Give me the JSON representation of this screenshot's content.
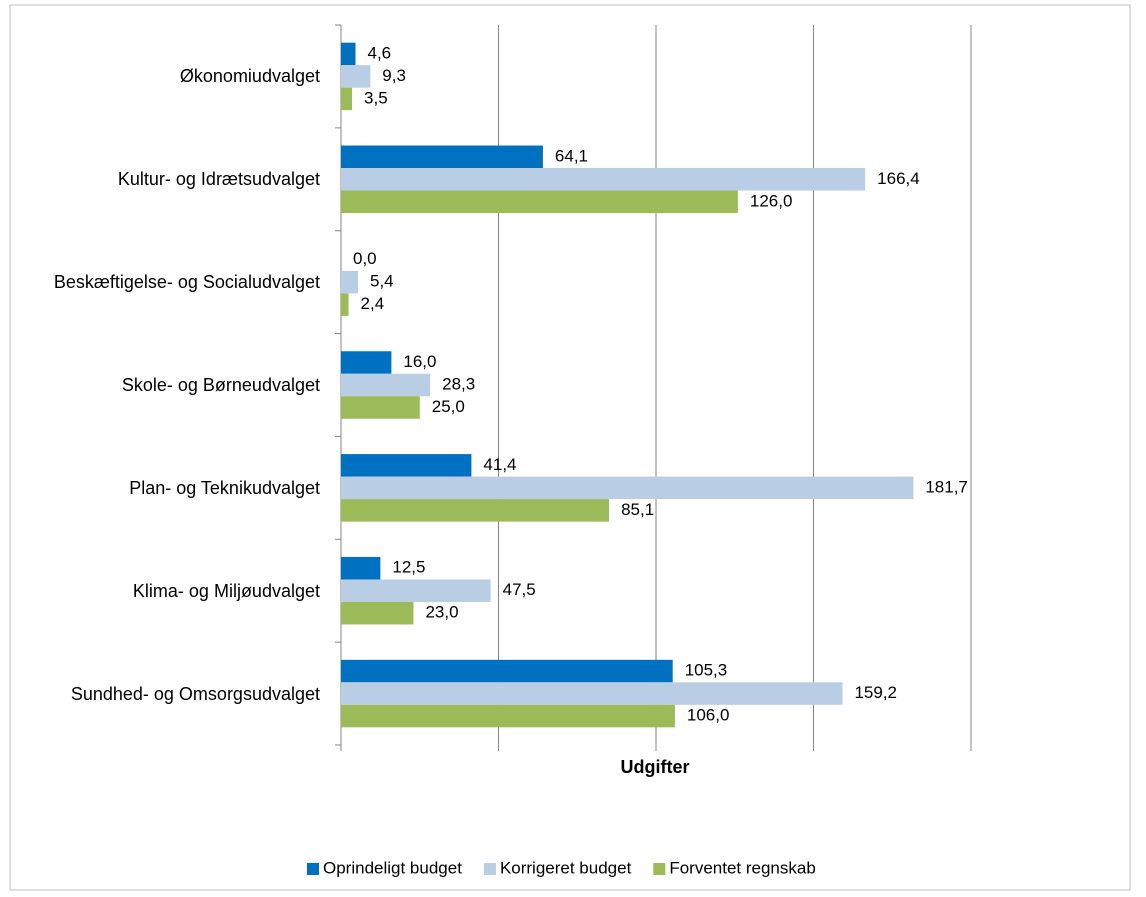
{
  "chart_data": {
    "type": "barh",
    "x_label": "Udgifter",
    "categories": [
      "Økonomiudvalget",
      "Kultur- og Idrætsudvalget",
      "Beskæftigelse- og Socialudvalget",
      "Skole- og Børneudvalget",
      "Plan- og Teknikudvalget",
      "Klima- og Miljøudvalget",
      "Sundhed- og Omsorgsudvalget"
    ],
    "series": [
      {
        "name": "Oprindeligt budget",
        "color": "#0070c0",
        "values": [
          4.6,
          64.1,
          0.0,
          16.0,
          41.4,
          12.5,
          105.3
        ],
        "value_labels": [
          "4,6",
          "64,1",
          "0,0",
          "16,0",
          "41,4",
          "12,5",
          "105,3"
        ]
      },
      {
        "name": "Korrigeret budget",
        "color": "#b9cde5",
        "values": [
          9.3,
          166.4,
          5.4,
          28.3,
          181.7,
          47.5,
          159.2
        ],
        "value_labels": [
          "9,3",
          "166,4",
          "5,4",
          "28,3",
          "181,7",
          "47,5",
          "159,2"
        ]
      },
      {
        "name": "Forventet regnskab",
        "color": "#9bbb59",
        "values": [
          3.5,
          126.0,
          2.4,
          25.0,
          85.1,
          23.0,
          106.0
        ],
        "value_labels": [
          "3,5",
          "126,0",
          "2,4",
          "25,0",
          "85,1",
          "23,0",
          "106,0"
        ]
      }
    ],
    "xlim": [
      0,
      200
    ],
    "xticks": [
      0,
      50,
      100,
      150,
      200
    ],
    "grid": true,
    "legend": "bottom"
  }
}
